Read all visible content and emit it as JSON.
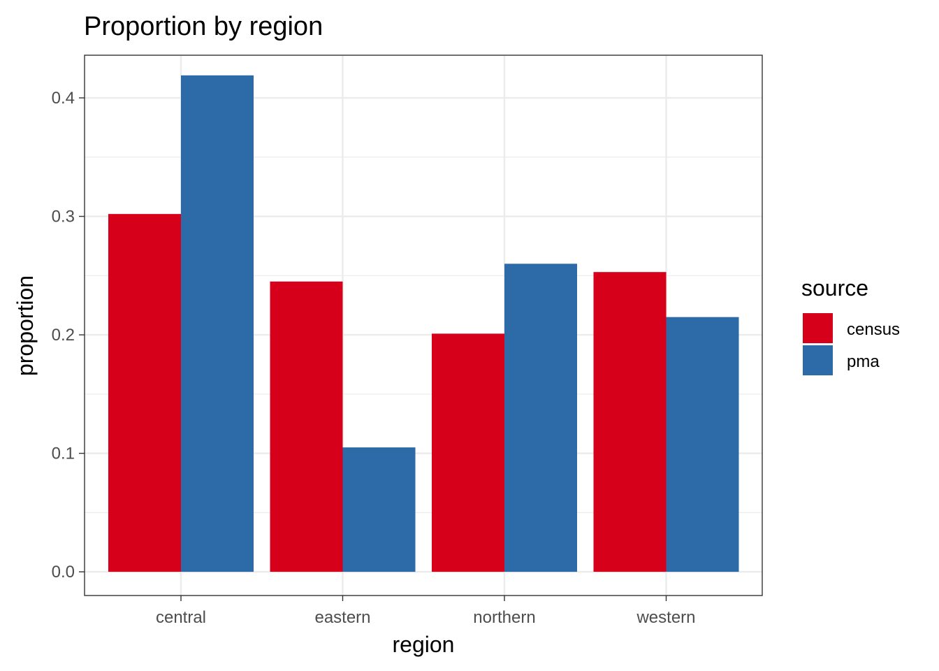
{
  "chart_data": {
    "type": "bar",
    "title": "Proportion by region",
    "xlabel": "region",
    "ylabel": "proportion",
    "categories": [
      "central",
      "eastern",
      "northern",
      "western"
    ],
    "series": [
      {
        "name": "census",
        "values": [
          0.302,
          0.245,
          0.201,
          0.253
        ],
        "color": "#D7001A"
      },
      {
        "name": "pma",
        "values": [
          0.419,
          0.105,
          0.26,
          0.215
        ],
        "color": "#2D6BA8"
      }
    ],
    "ylim": [
      -0.02,
      0.436
    ],
    "yticks": [
      0.0,
      0.1,
      0.2,
      0.3,
      0.4
    ],
    "ytick_labels": [
      "0.0",
      "0.1",
      "0.2",
      "0.3",
      "0.4"
    ],
    "grid": true,
    "legend": {
      "title": "source",
      "position": "right"
    }
  }
}
